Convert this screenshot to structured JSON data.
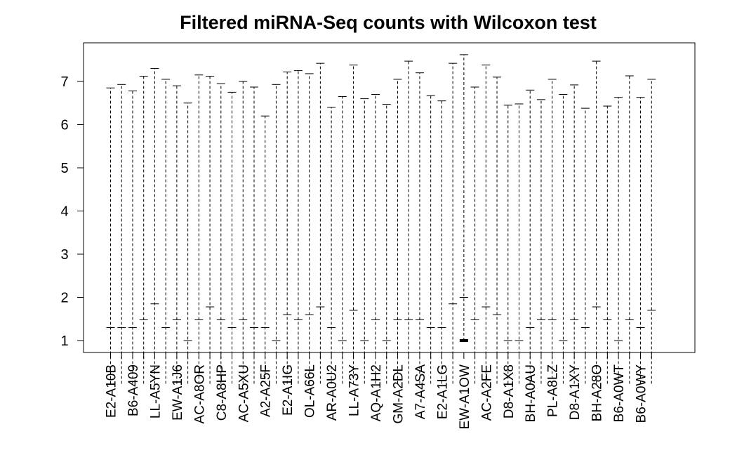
{
  "chart_data": {
    "type": "boxplot",
    "title": "Filtered miRNA-Seq counts with Wilcoxon test",
    "xlabel": "",
    "ylabel": "",
    "ylim": [
      0.6,
      7.95
    ],
    "yticks": [
      1,
      2,
      3,
      4,
      5,
      6,
      7
    ],
    "grid": false,
    "legend": "none",
    "line_color": "#000000",
    "categories": [
      "E2-A10B",
      "",
      "B6-A409",
      "",
      "LL-A5YN",
      "",
      "EW-A1J6",
      "",
      "AC-A8OR",
      "",
      "C8-A8HP",
      "",
      "AC-A5XU",
      "",
      "A2-A25F",
      "",
      "E2-A1IG",
      "",
      "OL-A66L",
      "",
      "AR-A0U2",
      "",
      "LL-A73Y",
      "",
      "AQ-A1H2",
      "",
      "GM-A2DL",
      "",
      "A7-A4SA",
      "",
      "E2-A1LG",
      "",
      "EW-A1OW",
      "",
      "AC-A2FE",
      "",
      "D8-A1X8",
      "",
      "BH-A0AU",
      "",
      "PL-A8LZ",
      "",
      "D8-A1XY",
      "",
      "BH-A28O",
      "",
      "B6-A0WT",
      "",
      "B6-A0WY",
      ""
    ],
    "whisker_low": [
      1.3,
      1.3,
      1.3,
      1.48,
      1.85,
      1.3,
      1.48,
      1.0,
      1.48,
      1.78,
      1.48,
      1.3,
      1.48,
      1.3,
      1.3,
      1.0,
      1.6,
      1.48,
      1.6,
      1.78,
      1.3,
      1.0,
      1.7,
      1.0,
      1.48,
      1.0,
      1.48,
      1.48,
      1.48,
      1.3,
      1.3,
      1.85,
      2.0,
      1.48,
      1.78,
      1.6,
      1.0,
      1.0,
      1.3,
      1.48,
      1.48,
      1.0,
      1.48,
      1.3,
      1.78,
      1.48,
      1.0,
      1.48,
      1.3,
      1.7
    ],
    "whisker_high": [
      6.85,
      6.93,
      6.78,
      7.12,
      7.3,
      7.05,
      6.9,
      6.5,
      7.15,
      7.12,
      6.95,
      6.75,
      7.0,
      6.87,
      6.2,
      6.93,
      7.22,
      7.25,
      7.18,
      7.42,
      6.4,
      6.65,
      7.38,
      6.6,
      6.7,
      6.47,
      7.05,
      7.47,
      7.2,
      6.67,
      6.55,
      7.42,
      7.62,
      6.87,
      7.38,
      7.1,
      6.45,
      6.48,
      6.8,
      6.58,
      7.05,
      6.7,
      6.92,
      6.38,
      7.47,
      6.43,
      6.63,
      7.13,
      6.63,
      7.05
    ],
    "box_values": [
      0,
      0,
      0,
      0,
      0,
      0,
      0,
      0,
      0,
      0,
      0,
      0,
      0,
      0,
      0,
      0,
      0,
      0,
      0,
      0,
      0,
      0,
      0,
      0,
      0,
      0,
      0,
      0,
      0,
      0,
      0,
      0,
      1,
      0,
      0,
      0,
      0,
      0,
      0,
      0,
      0,
      0,
      0,
      0,
      0,
      0,
      0,
      0,
      0,
      0
    ]
  }
}
